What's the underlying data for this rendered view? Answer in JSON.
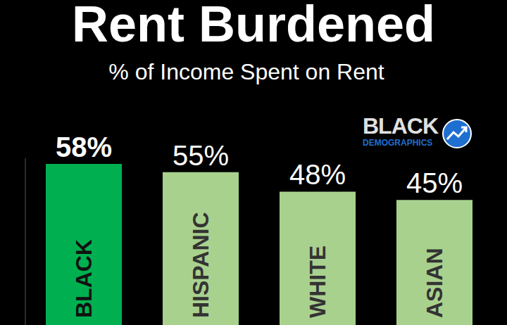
{
  "chart_data": {
    "type": "bar",
    "title": "Rent Burdened",
    "subtitle": "% of Income Spent on Rent",
    "logo": [
      "BLACK",
      "DEMOGRAPHICS"
    ],
    "categories": [
      "BLACK",
      "HISPANIC",
      "WHITE",
      "ASIAN"
    ],
    "values": [
      58,
      55,
      48,
      45
    ],
    "value_labels": [
      "58%",
      "55%",
      "48%",
      "45%"
    ],
    "colors": [
      "#00b050",
      "#a9d18e",
      "#a9d18e",
      "#a9d18e"
    ],
    "ylim": [
      0,
      60
    ],
    "data_labels": true,
    "tick_labels": false,
    "grid": false
  }
}
